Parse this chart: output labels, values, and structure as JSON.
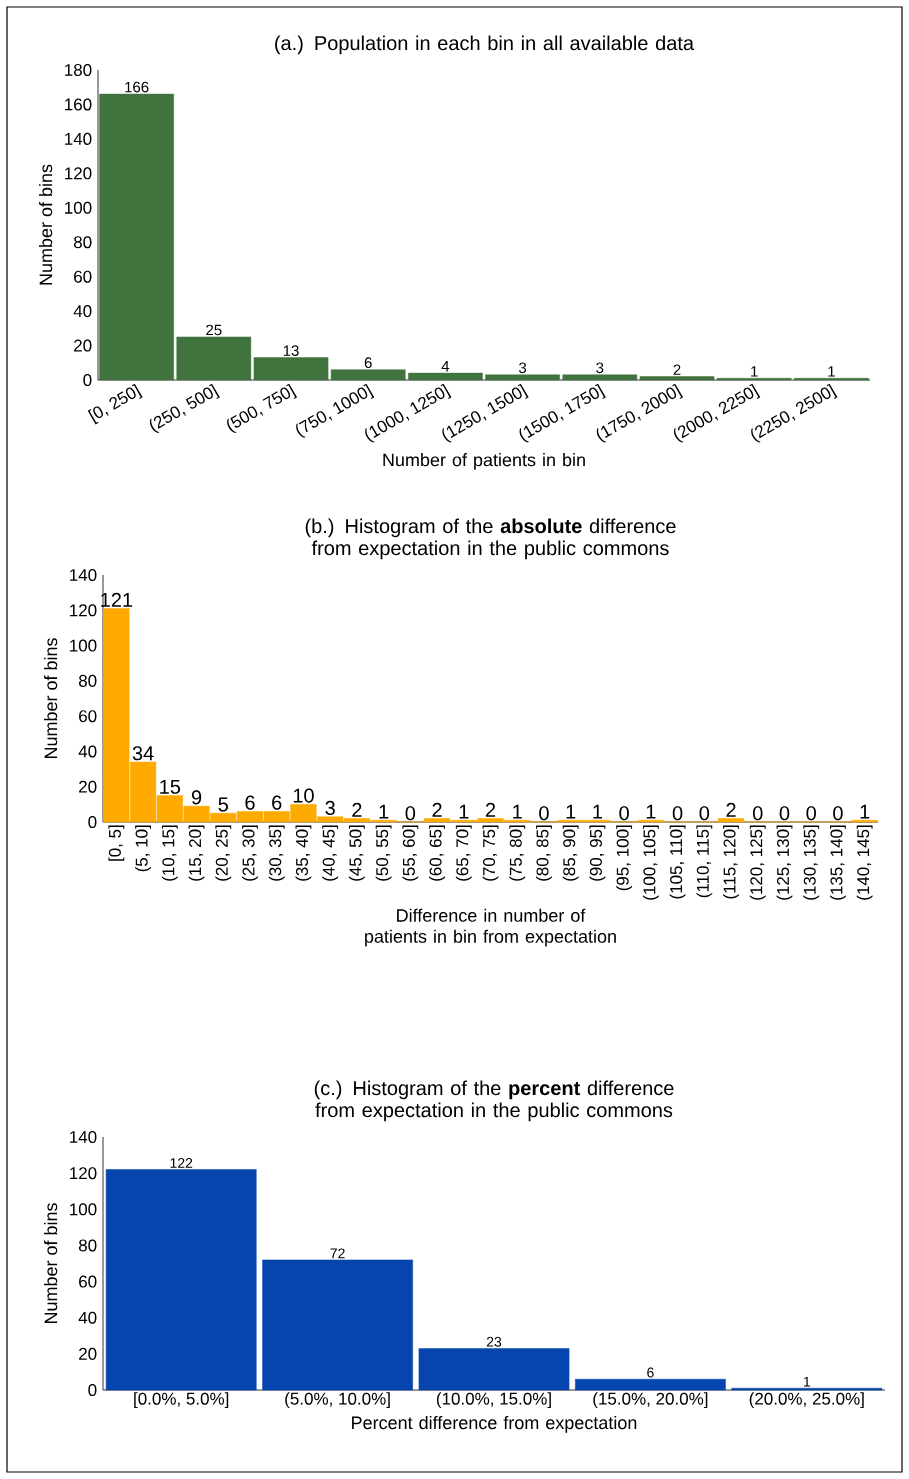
{
  "chart_data": [
    {
      "type": "bar",
      "title": "(a.) Population in each bin in all available data",
      "xlabel": "Number of patients in bin",
      "ylabel": "Number of bins",
      "categories": [
        "[0, 250]",
        "(250, 500]",
        "(500, 750]",
        "(750, 1000]",
        "(1000, 1250]",
        "(1250, 1500]",
        "(1500, 1750]",
        "(1750, 2000]",
        "(2000, 2250]",
        "(2250, 2500]"
      ],
      "values": [
        166,
        25,
        13,
        6,
        4,
        3,
        3,
        2,
        1,
        1
      ],
      "color": "#41733f",
      "ylim": [
        0,
        180
      ],
      "yticks": [
        0,
        20,
        40,
        60,
        80,
        100,
        120,
        140,
        160,
        180
      ],
      "data_labels": true
    },
    {
      "type": "bar",
      "title": "(b.) Histogram of the **absolute** difference from expectation in the public commons",
      "xlabel": "Difference in number of patients in bin from expectation",
      "ylabel": "Number of bins",
      "categories": [
        "[0, 5]",
        "(5, 10]",
        "(10, 15]",
        "(15, 20]",
        "(20, 25]",
        "(25, 30]",
        "(30, 35]",
        "(35, 40]",
        "(40, 45]",
        "(45, 50]",
        "(50, 55]",
        "(55, 60]",
        "(60, 65]",
        "(65, 70]",
        "(70, 75]",
        "(75, 80]",
        "(80, 85]",
        "(85, 90]",
        "(90, 95]",
        "(95, 100]",
        "(100, 105]",
        "(105, 110]",
        "(110, 115]",
        "(115, 120]",
        "(120, 125]",
        "(125, 130]",
        "(130, 135]",
        "(135, 140]",
        "(140, 145]"
      ],
      "values": [
        121,
        34,
        15,
        9,
        5,
        6,
        6,
        10,
        3,
        2,
        1,
        0,
        2,
        1,
        2,
        1,
        0,
        1,
        1,
        0,
        1,
        0,
        0,
        2,
        0,
        0,
        0,
        0,
        1
      ],
      "color": "#ffaa00",
      "ylim": [
        0,
        140
      ],
      "yticks": [
        0,
        20,
        40,
        60,
        80,
        100,
        120,
        140
      ],
      "data_labels": true
    },
    {
      "type": "bar",
      "title": "(c.) Histogram of the **percent** difference from expectation in the public commons",
      "xlabel": "Percent difference from expectation",
      "ylabel": "Number of bins",
      "categories": [
        "[0.0%, 5.0%]",
        "(5.0%, 10.0%]",
        "(10.0%, 15.0%]",
        "(15.0%, 20.0%]",
        "(20.0%, 25.0%]"
      ],
      "values": [
        122,
        72,
        23,
        6,
        1
      ],
      "color": "#0645ad",
      "ylim": [
        0,
        140
      ],
      "yticks": [
        0,
        20,
        40,
        60,
        80,
        100,
        120,
        140
      ],
      "data_labels": true
    }
  ]
}
